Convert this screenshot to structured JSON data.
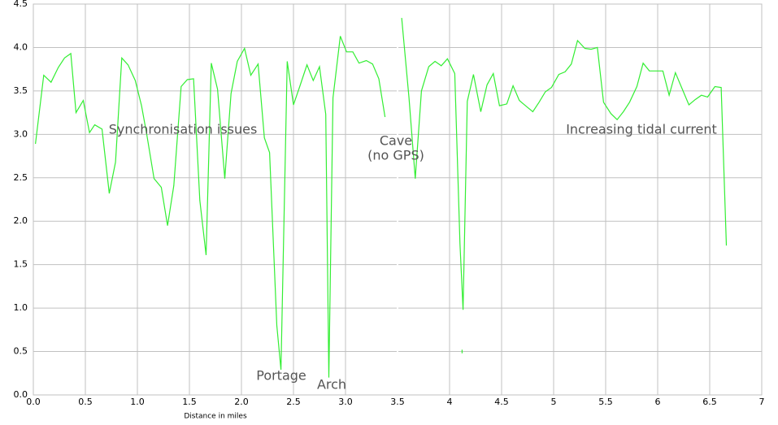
{
  "chart_data": {
    "type": "line",
    "x_label": "Distance in miles",
    "annotations": [
      "Synchronisation issues",
      "Cave",
      "(no GPS)",
      "Portage",
      "Arch",
      "Increasing tidal current"
    ],
    "x": [
      0.02,
      0.1,
      0.17,
      0.24,
      0.3,
      0.36,
      0.41,
      0.48,
      0.54,
      0.59,
      0.66,
      0.73,
      0.79,
      0.85,
      0.91,
      0.98,
      1.04,
      1.09,
      1.16,
      1.23,
      1.29,
      1.35,
      1.42,
      1.48,
      1.54,
      1.6,
      1.66,
      1.71,
      1.77,
      1.84,
      1.9,
      1.96,
      2.03,
      2.09,
      2.16,
      2.22,
      2.27,
      2.34,
      2.38,
      2.44,
      2.5,
      2.56,
      2.63,
      2.69,
      2.75,
      2.81,
      2.84,
      2.88,
      2.95,
      3.01,
      3.07,
      3.13,
      3.2,
      3.26,
      3.32,
      3.38,
      null,
      3.54,
      3.61,
      3.67,
      3.73,
      3.8,
      3.86,
      3.92,
      3.98,
      4.05,
      4.1,
      4.13,
      4.17,
      4.23,
      4.3,
      4.36,
      4.42,
      4.48,
      4.55,
      4.61,
      4.67,
      4.73,
      4.8,
      4.86,
      4.92,
      4.98,
      5.05,
      5.11,
      5.17,
      5.23,
      5.3,
      5.36,
      5.42,
      5.48,
      5.55,
      5.61,
      5.67,
      5.73,
      5.8,
      5.86,
      5.92,
      5.98,
      6.05,
      6.11,
      6.17,
      6.23,
      6.3,
      6.36,
      6.42,
      6.48,
      6.55,
      6.61,
      6.66,
      null,
      4.12,
      4.12
    ],
    "series": [
      {
        "color": "#33ee33",
        "values": [
          2.89,
          3.68,
          3.6,
          3.77,
          3.88,
          3.93,
          3.25,
          3.39,
          3.02,
          3.11,
          3.06,
          2.32,
          2.68,
          3.88,
          3.8,
          3.62,
          3.33,
          3.0,
          2.49,
          2.39,
          1.95,
          2.41,
          3.55,
          3.63,
          3.64,
          2.24,
          1.61,
          3.82,
          3.52,
          2.49,
          3.47,
          3.84,
          3.99,
          3.68,
          3.81,
          2.96,
          2.79,
          0.8,
          0.29,
          3.84,
          3.34,
          3.55,
          3.8,
          3.62,
          3.78,
          3.23,
          0.2,
          3.42,
          4.13,
          3.95,
          3.95,
          3.82,
          3.85,
          3.81,
          3.64,
          3.2,
          null,
          4.34,
          3.42,
          2.49,
          3.5,
          3.78,
          3.84,
          3.79,
          3.87,
          3.7,
          1.74,
          0.98,
          3.38,
          3.69,
          3.26,
          3.57,
          3.7,
          3.33,
          3.35,
          3.56,
          3.39,
          3.33,
          3.26,
          3.37,
          3.49,
          3.54,
          3.69,
          3.72,
          3.81,
          4.08,
          3.99,
          3.98,
          4.0,
          3.37,
          3.24,
          3.17,
          3.26,
          3.37,
          3.55,
          3.82,
          3.73,
          3.73,
          3.73,
          3.45,
          3.71,
          3.54,
          3.34,
          3.4,
          3.45,
          3.43,
          3.55,
          3.54,
          1.72,
          null,
          0.52,
          0.48
        ]
      }
    ],
    "xlim": [
      0,
      7
    ],
    "ylim": [
      0,
      4.5
    ],
    "xticks": [
      {
        "value": 0,
        "label": "0.0"
      },
      0.5,
      {
        "value": 1,
        "label": "1.0"
      },
      1.5,
      {
        "value": 2,
        "label": "2.0"
      },
      2.5,
      {
        "value": 3,
        "label": "3.0"
      },
      3.5,
      4,
      4.5,
      5,
      5.5,
      6,
      6.5,
      7
    ],
    "yticks": [
      {
        "value": 0,
        "label": "0.0"
      },
      0.5,
      {
        "value": 1,
        "label": "1.0"
      },
      1.5,
      {
        "value": 2,
        "label": "2.0"
      },
      2.5,
      {
        "value": 3,
        "label": "3.0"
      },
      3.5,
      {
        "value": 4,
        "label": "4.0"
      },
      4.5
    ],
    "grid": true
  }
}
